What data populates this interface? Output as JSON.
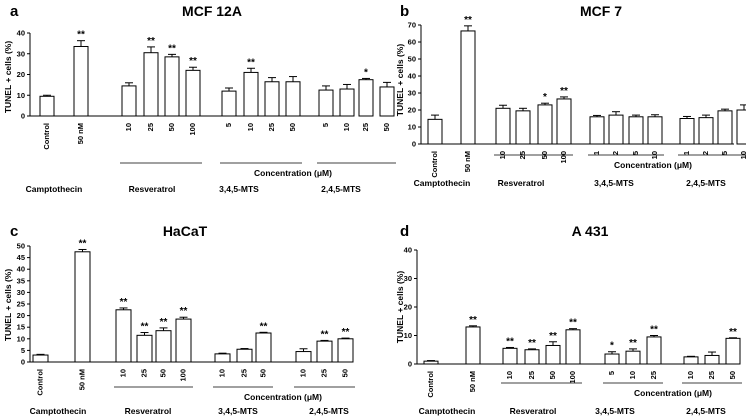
{
  "chart_data": [
    {
      "type": "bar",
      "panel": "a",
      "title": "MCF 12A",
      "ylabel": "TUNEL + cells (%)",
      "xlabel": "Concentration (μM)",
      "ylim": [
        0,
        40
      ],
      "yticks": [
        "0",
        "10",
        "20",
        "30",
        "40"
      ],
      "yticks_values": [
        0,
        10,
        20,
        30,
        40
      ],
      "group_labels": [
        "Camptothecin",
        "Resveratrol",
        "3,4,5-MTS",
        "2,4,5-MTS"
      ],
      "bars": [
        {
          "label": "Control",
          "value": 9.5,
          "error": 0.5,
          "sig": ""
        },
        {
          "label": "50 nM",
          "value": 33.5,
          "error": 2.8,
          "sig": "**"
        },
        {
          "label": "10",
          "value": 14.5,
          "error": 1.5,
          "sig": ""
        },
        {
          "label": "25",
          "value": 30.5,
          "error": 2.8,
          "sig": "**"
        },
        {
          "label": "50",
          "value": 28.5,
          "error": 1.2,
          "sig": "**"
        },
        {
          "label": "100",
          "value": 22,
          "error": 1.5,
          "sig": "**"
        },
        {
          "label": "5",
          "value": 12,
          "error": 1.5,
          "sig": ""
        },
        {
          "label": "10",
          "value": 21,
          "error": 2,
          "sig": "**"
        },
        {
          "label": "25",
          "value": 16.5,
          "error": 2,
          "sig": ""
        },
        {
          "label": "50",
          "value": 16.5,
          "error": 2.5,
          "sig": ""
        },
        {
          "label": "5",
          "value": 12.5,
          "error": 2,
          "sig": ""
        },
        {
          "label": "10",
          "value": 13,
          "error": 2.2,
          "sig": ""
        },
        {
          "label": "25",
          "value": 17.5,
          "error": 0.6,
          "sig": "*"
        },
        {
          "label": "50",
          "value": 14,
          "error": 2.2,
          "sig": ""
        }
      ]
    },
    {
      "type": "bar",
      "panel": "b",
      "title": "MCF 7",
      "ylabel": "TUNEL + cells (%)",
      "xlabel": "Concentration (μM)",
      "ylim": [
        0,
        70
      ],
      "yticks": [
        "0",
        "10",
        "20",
        "30",
        "40",
        "50",
        "60",
        "70"
      ],
      "yticks_values": [
        0,
        10,
        20,
        30,
        40,
        50,
        60,
        70
      ],
      "group_labels": [
        "Camptothecin",
        "Resveratrol",
        "3,4,5-MTS",
        "2,4,5-MTS"
      ],
      "bars": [
        {
          "label": "Control",
          "value": 14.5,
          "error": 2.5,
          "sig": ""
        },
        {
          "label": "50 nM",
          "value": 66.5,
          "error": 3,
          "sig": "**"
        },
        {
          "label": "10",
          "value": 21,
          "error": 1.8,
          "sig": ""
        },
        {
          "label": "25",
          "value": 19.5,
          "error": 1.5,
          "sig": ""
        },
        {
          "label": "50",
          "value": 23,
          "error": 1,
          "sig": "*"
        },
        {
          "label": "100",
          "value": 26.5,
          "error": 1.2,
          "sig": "**"
        },
        {
          "label": "1",
          "value": 16,
          "error": 0.8,
          "sig": ""
        },
        {
          "label": "2",
          "value": 17,
          "error": 2,
          "sig": ""
        },
        {
          "label": "5",
          "value": 16,
          "error": 1,
          "sig": ""
        },
        {
          "label": "10",
          "value": 16,
          "error": 1.2,
          "sig": ""
        },
        {
          "label": "1",
          "value": 15,
          "error": 1.2,
          "sig": ""
        },
        {
          "label": "2",
          "value": 15.5,
          "error": 1.5,
          "sig": ""
        },
        {
          "label": "5",
          "value": 19.5,
          "error": 1,
          "sig": ""
        },
        {
          "label": "10",
          "value": 20,
          "error": 3,
          "sig": ""
        }
      ]
    },
    {
      "type": "bar",
      "panel": "c",
      "title": "HaCaT",
      "ylabel": "TUNEL + cells (%)",
      "xlabel": "Concentration (μM)",
      "ylim": [
        0,
        50
      ],
      "yticks": [
        "0",
        "5",
        "10",
        "15",
        "20",
        "25",
        "30",
        "35",
        "40",
        "45",
        "50"
      ],
      "yticks_values": [
        0,
        5,
        10,
        15,
        20,
        25,
        30,
        35,
        40,
        45,
        50
      ],
      "group_labels": [
        "Camptothecin",
        "Resveratrol",
        "3,4,5-MTS",
        "2,4,5-MTS"
      ],
      "bars": [
        {
          "label": "Control",
          "value": 3,
          "error": 0.3,
          "sig": ""
        },
        {
          "label": "50 nM",
          "value": 47.5,
          "error": 1,
          "sig": "**"
        },
        {
          "label": "10",
          "value": 22.5,
          "error": 0.8,
          "sig": "**"
        },
        {
          "label": "25",
          "value": 11.5,
          "error": 1.2,
          "sig": "**"
        },
        {
          "label": "50",
          "value": 13.5,
          "error": 1.2,
          "sig": "**"
        },
        {
          "label": "100",
          "value": 18.5,
          "error": 0.8,
          "sig": "**"
        },
        {
          "label": "10",
          "value": 3.5,
          "error": 0.3,
          "sig": ""
        },
        {
          "label": "25",
          "value": 5.5,
          "error": 0.3,
          "sig": ""
        },
        {
          "label": "50",
          "value": 12.5,
          "error": 0.3,
          "sig": "**"
        },
        {
          "label": "10",
          "value": 4.5,
          "error": 1.2,
          "sig": ""
        },
        {
          "label": "25",
          "value": 9,
          "error": 0.3,
          "sig": "**"
        },
        {
          "label": "50",
          "value": 10,
          "error": 0.3,
          "sig": "**"
        }
      ]
    },
    {
      "type": "bar",
      "panel": "d",
      "title": "A 431",
      "ylabel": "TUNEL + cells (%)",
      "xlabel": "Concentration (μM)",
      "ylim": [
        0,
        40
      ],
      "yticks": [
        "0",
        "10",
        "20",
        "30",
        "40"
      ],
      "yticks_values": [
        0,
        10,
        20,
        30,
        40
      ],
      "group_labels": [
        "Camptothecin",
        "Resveratrol",
        "3,4,5-MTS",
        "2,4,5-MTS"
      ],
      "bars": [
        {
          "label": "Control",
          "value": 1,
          "error": 0.2,
          "sig": ""
        },
        {
          "label": "50 nM",
          "value": 13,
          "error": 0.4,
          "sig": "**"
        },
        {
          "label": "10",
          "value": 5.5,
          "error": 0.3,
          "sig": "**"
        },
        {
          "label": "25",
          "value": 5,
          "error": 0.3,
          "sig": "**"
        },
        {
          "label": "50",
          "value": 6.5,
          "error": 1.3,
          "sig": "**"
        },
        {
          "label": "100",
          "value": 12,
          "error": 0.4,
          "sig": "**"
        },
        {
          "label": "5",
          "value": 3.5,
          "error": 0.8,
          "sig": "*"
        },
        {
          "label": "10",
          "value": 4.5,
          "error": 0.8,
          "sig": "**"
        },
        {
          "label": "25",
          "value": 9.5,
          "error": 0.5,
          "sig": "**"
        },
        {
          "label": "10",
          "value": 2.5,
          "error": 0.2,
          "sig": ""
        },
        {
          "label": "25",
          "value": 3,
          "error": 1.2,
          "sig": ""
        },
        {
          "label": "50",
          "value": 9,
          "error": 0.2,
          "sig": "**"
        }
      ]
    }
  ]
}
